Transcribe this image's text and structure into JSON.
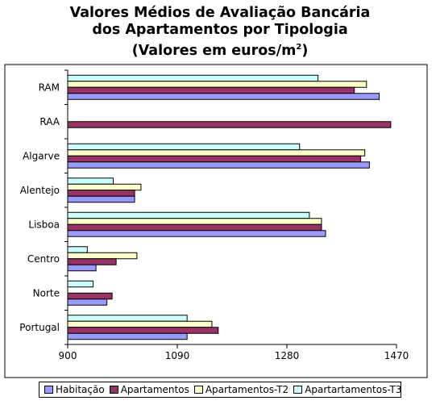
{
  "chart_data": {
    "type": "bar",
    "orientation": "horizontal",
    "title_line1": "Valores Médios de Avaliação Bancária",
    "title_line2": "dos Apartamentos por Tipologia",
    "title_line3_prefix": "(Valores em euros/m",
    "title_line3_sup": "2",
    "title_line3_suffix": ")",
    "categories": [
      "RAM",
      "RAA",
      "Algarve",
      "Alentejo",
      "Lisboa",
      "Centro",
      "Norte",
      "Portugal"
    ],
    "series": [
      {
        "name": "Habitação",
        "color": "#9999FF",
        "values": [
          1440,
          null,
          1423,
          1016,
          1347,
          949,
          968,
          1107
        ]
      },
      {
        "name": "Apartamentos",
        "color": "#993366",
        "values": [
          1397,
          1460,
          1408,
          1016,
          1340,
          984,
          977,
          1161
        ]
      },
      {
        "name": "Apartamentos-T2",
        "color": "#FFFFCC",
        "values": [
          1418,
          null,
          1415,
          1027,
          1340,
          1020,
          null,
          1150
        ]
      },
      {
        "name": "Apartartamentos-T3",
        "color": "#CCFFFF",
        "values": [
          1334,
          null,
          1302,
          979,
          1319,
          934,
          944,
          1107
        ]
      }
    ],
    "xlim": [
      900,
      1470
    ],
    "xticks": [
      900,
      1090,
      1280,
      1470
    ],
    "xtick_labels": [
      "900",
      "1090",
      "1280",
      "1470"
    ],
    "grid": false,
    "legend_position": "bottom"
  }
}
